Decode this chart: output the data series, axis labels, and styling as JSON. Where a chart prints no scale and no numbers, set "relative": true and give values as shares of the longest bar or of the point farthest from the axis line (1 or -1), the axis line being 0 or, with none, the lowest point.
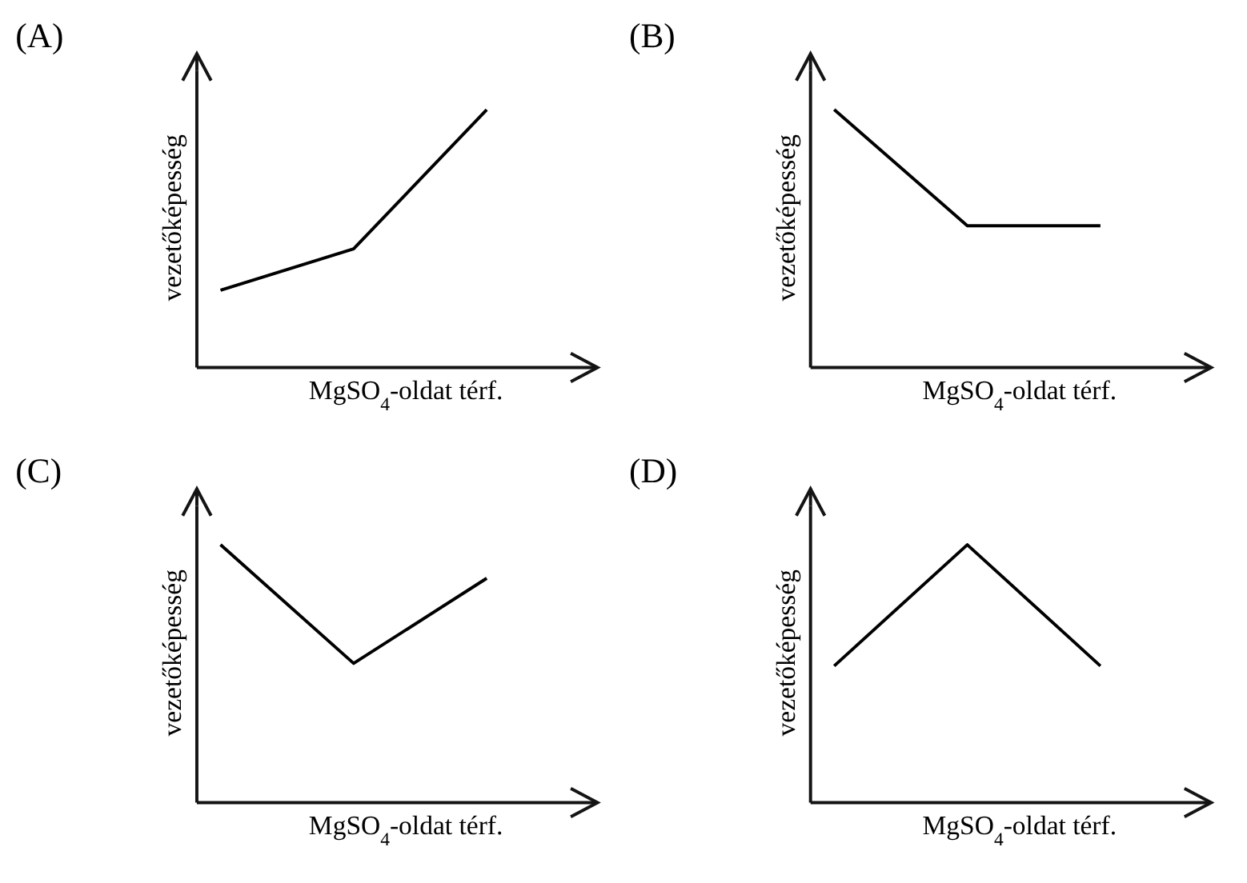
{
  "chart_data": [
    {
      "type": "line",
      "title": "(A)",
      "ylabel": "vezetőképesség",
      "xlabel": "MgSO$_{4}$-oldat térf.",
      "relative": true,
      "tick_labels": false,
      "categories": [
        null,
        null,
        null
      ],
      "series": [
        {
          "color": "#000000",
          "values": [
            0.3,
            0.46,
            1
          ]
        }
      ]
    },
    {
      "type": "line",
      "title": "(B)",
      "ylabel": "vezetőképesség",
      "xlabel": "MgSO$_{4}$-oldat térf.",
      "relative": true,
      "tick_labels": false,
      "categories": [
        null,
        null,
        null
      ],
      "series": [
        {
          "color": "#000000",
          "values": [
            1,
            0.55,
            0.55
          ]
        }
      ]
    },
    {
      "type": "line",
      "title": "(C)",
      "ylabel": "vezetőképesség",
      "xlabel": "MgSO$_{4}$-oldat térf.",
      "relative": true,
      "tick_labels": false,
      "categories": [
        null,
        null,
        null
      ],
      "series": [
        {
          "color": "#000000",
          "values": [
            1,
            0.54,
            0.87
          ]
        }
      ]
    },
    {
      "type": "line",
      "title": "(D)",
      "ylabel": "vezetőképesség",
      "xlabel": "MgSO$_{4}$-oldat térf.",
      "relative": true,
      "tick_labels": false,
      "categories": [
        null,
        null,
        null
      ],
      "series": [
        {
          "color": "#000000",
          "values": [
            0.53,
            1,
            0.53
          ]
        }
      ]
    }
  ]
}
